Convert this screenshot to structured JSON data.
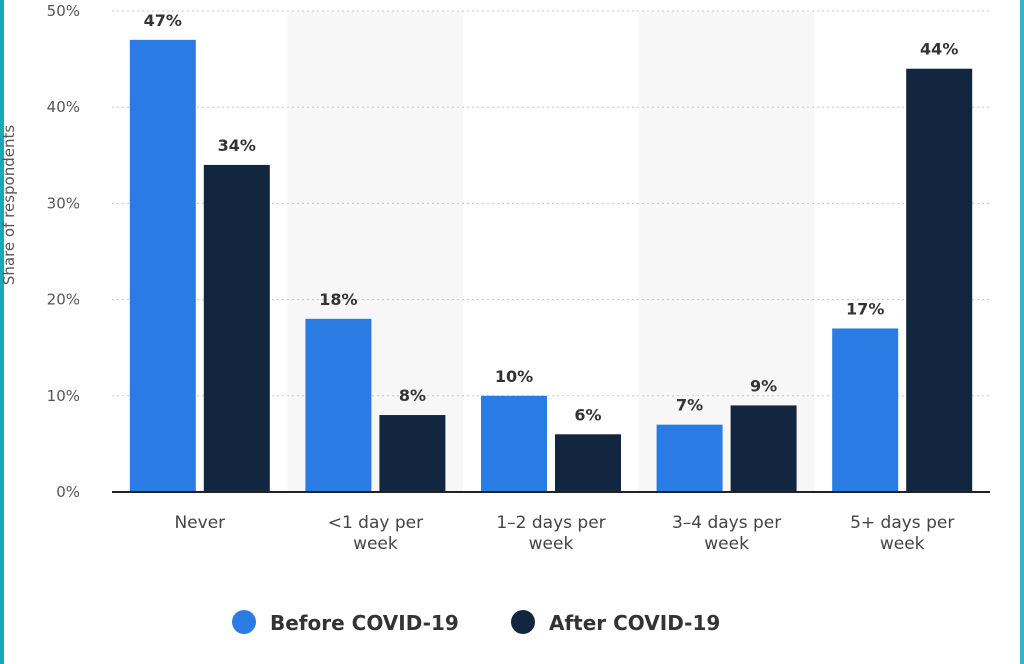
{
  "theme": {
    "left_edge_color": "#1aa7b8",
    "right_edge_color": "#36b6c3",
    "grid_color": "#c8c8c8",
    "band_color": "#f7f7f7",
    "axis_color": "#222222"
  },
  "chart_data": {
    "type": "bar",
    "title": "",
    "xlabel": "",
    "ylabel": "Share of respondents",
    "ylim": [
      0,
      50
    ],
    "yticks": [
      "0%",
      "10%",
      "20%",
      "30%",
      "40%",
      "50%"
    ],
    "ytick_values": [
      0,
      10,
      20,
      30,
      40,
      50
    ],
    "grid": true,
    "legend_position": "bottom-center",
    "categories": [
      [
        "Never"
      ],
      [
        "<1 day per",
        "week"
      ],
      [
        "1–2 days per",
        "week"
      ],
      [
        "3–4 days per",
        "week"
      ],
      [
        "5+ days per",
        "week"
      ]
    ],
    "series": [
      {
        "name": "Before COVID-19",
        "color": "#2a7be4",
        "values": [
          47,
          18,
          10,
          7,
          17
        ],
        "labels": [
          "47%",
          "18%",
          "10%",
          "7%",
          "17%"
        ]
      },
      {
        "name": "After COVID-19",
        "color": "#12263f",
        "values": [
          34,
          8,
          6,
          9,
          44
        ],
        "labels": [
          "34%",
          "8%",
          "6%",
          "9%",
          "44%"
        ]
      }
    ]
  }
}
